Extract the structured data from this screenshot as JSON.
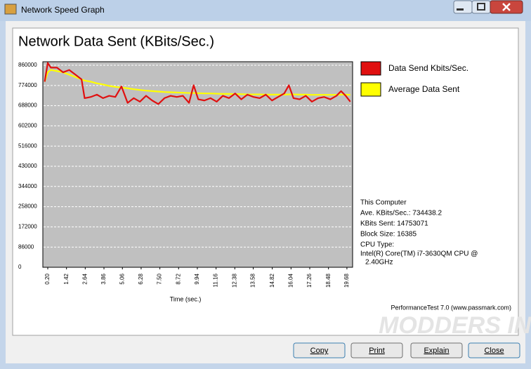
{
  "window": {
    "title": "Network Speed Graph"
  },
  "chart_data": {
    "type": "line",
    "title": "Network Data Sent (KBits/Sec.)",
    "x_label": "Time (sec.)",
    "x": [
      0,
      0.2,
      0.4,
      0.8,
      1.2,
      1.6,
      2.0,
      2.4,
      2.6,
      3.0,
      3.4,
      3.8,
      4.2,
      4.6,
      5.0,
      5.4,
      5.8,
      6.2,
      6.6,
      7.0,
      7.4,
      7.8,
      8.2,
      8.6,
      9.0,
      9.4,
      9.7,
      10.0,
      10.4,
      10.8,
      11.2,
      11.6,
      12.0,
      12.4,
      12.8,
      13.2,
      13.6,
      14.0,
      14.4,
      14.8,
      15.2,
      15.6,
      15.9,
      16.2,
      16.6,
      17.0,
      17.4,
      17.8,
      18.2,
      18.6,
      19.0,
      19.3,
      19.6,
      19.9
    ],
    "series": [
      {
        "name": "Data Send Kbits/Sec.",
        "color": "#e01010",
        "values": [
          790000,
          870000,
          850000,
          850000,
          830000,
          840000,
          820000,
          800000,
          720000,
          725000,
          735000,
          720000,
          730000,
          725000,
          770000,
          700000,
          720000,
          705000,
          730000,
          710000,
          695000,
          720000,
          730000,
          725000,
          730000,
          700000,
          775000,
          715000,
          710000,
          720000,
          705000,
          730000,
          720000,
          740000,
          715000,
          735000,
          725000,
          720000,
          735000,
          710000,
          725000,
          740000,
          775000,
          720000,
          715000,
          730000,
          705000,
          720000,
          725000,
          715000,
          730000,
          750000,
          730000,
          705000
        ]
      },
      {
        "name": "Average Data Sent",
        "color": "#ffff00",
        "values": [
          790000,
          830000,
          840000,
          835000,
          830000,
          820000,
          810000,
          800000,
          795000,
          790000,
          783000,
          778000,
          772000,
          768000,
          765000,
          762000,
          758000,
          755000,
          752000,
          750000,
          748000,
          746000,
          745000,
          744000,
          743000,
          742000,
          742000,
          741000,
          740000,
          740000,
          739000,
          738000,
          738000,
          737000,
          737000,
          736000,
          736000,
          736000,
          735000,
          735000,
          735000,
          735000,
          736000,
          736000,
          735000,
          735000,
          734000,
          734000,
          734000,
          734000,
          734000,
          735000,
          735000,
          734000
        ]
      }
    ],
    "xlim": [
      -0.12,
      20.05
    ],
    "xticks": [
      {
        "value": 0.2,
        "label": "0.20"
      },
      1.42,
      2.64,
      3.86,
      5.06,
      6.28,
      {
        "value": 7.5,
        "label": "7.50"
      },
      8.72,
      9.94,
      11.16,
      12.38,
      13.58,
      14.82,
      16.04,
      17.26,
      18.48,
      19.68
    ],
    "ylim": [
      0,
      875000
    ],
    "yticks": [
      0,
      86000,
      172000,
      258000,
      344000,
      430000,
      516000,
      602000,
      688000,
      774000,
      860000
    ],
    "grid": true,
    "legend": "right",
    "plot_background": "#c0c0c0"
  },
  "info": [
    "This Computer",
    "Ave. KBits/Sec.: 734438.2",
    "KBits Sent: 14753071",
    "Block Size: 16385",
    "CPU Type:",
    "Intel(R) Core(TM) i7-3630QM CPU @",
    "2.40GHz"
  ],
  "footer": "PerformanceTest 7.0 (www.passmark.com)",
  "watermark": "MODDERS INC",
  "buttons": [
    "Copy",
    "Print",
    "Explain",
    "Close"
  ]
}
